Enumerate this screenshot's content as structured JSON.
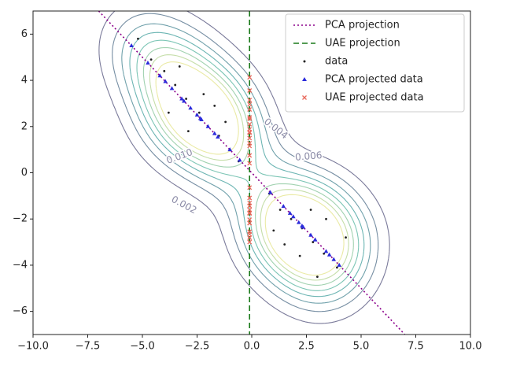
{
  "chart_data": {
    "type": "scatter",
    "xlim": [
      -10,
      10
    ],
    "ylim": [
      -7,
      7
    ],
    "xticks": [
      {
        "value": -10,
        "label": "−10.0"
      },
      {
        "value": -7.5,
        "label": "−7.5"
      },
      {
        "value": -5,
        "label": "−5.0"
      },
      {
        "value": -2.5,
        "label": "−2.5"
      },
      {
        "value": 0,
        "label": "0.0"
      },
      {
        "value": 2.5,
        "label": "2.5"
      },
      {
        "value": 5,
        "label": "5.0"
      },
      {
        "value": 7.5,
        "label": "7.5"
      },
      {
        "value": 10,
        "label": "10.0"
      }
    ],
    "yticks": [
      {
        "value": -6,
        "label": "−6"
      },
      {
        "value": -4,
        "label": "−4"
      },
      {
        "value": -2,
        "label": "−2"
      },
      0,
      2,
      4,
      6
    ],
    "contour_levels": [
      0.002,
      0.004,
      0.006,
      0.008,
      0.01,
      0.012,
      0.014,
      0.016
    ],
    "contour_labels": [
      {
        "value": 0.002,
        "label": "0.002"
      },
      {
        "value": 0.004,
        "label": "0.004"
      },
      {
        "value": 0.006,
        "label": "0.006"
      },
      {
        "value": 0.01,
        "label": "0.010"
      }
    ],
    "legend": "upper right",
    "series": [
      {
        "name": "PCA projection",
        "color": "#8b008b",
        "style": "dotted",
        "x": [
          -7,
          7
        ],
        "y": [
          7,
          -7
        ]
      },
      {
        "name": "UAE projection",
        "color": "#1a7a1a",
        "style": "dashed",
        "x": [
          -0.1,
          -0.1
        ],
        "y": [
          7,
          -7
        ]
      },
      {
        "name": "data",
        "color": "#222222",
        "style": "dot",
        "x": [
          -5.2,
          -4.6,
          -4.0,
          -3.5,
          -3.0,
          -2.4,
          -2.0,
          -1.5,
          -1.0,
          -0.6,
          -3.8,
          -2.9,
          -2.2,
          -1.7,
          -3.3,
          -1.2,
          0.8,
          1.3,
          1.8,
          2.3,
          2.8,
          3.3,
          3.9,
          1.5,
          2.2,
          3.4,
          2.7,
          1.0,
          3.0,
          4.3
        ],
        "y": [
          5.8,
          4.9,
          4.4,
          3.8,
          3.2,
          2.6,
          2.0,
          1.6,
          1.0,
          0.5,
          2.6,
          1.8,
          3.4,
          2.9,
          4.6,
          2.2,
          -0.9,
          -1.6,
          -2.0,
          -2.4,
          -3.0,
          -3.5,
          -4.1,
          -3.1,
          -3.6,
          -2.0,
          -1.6,
          -2.5,
          -4.5,
          -2.8
        ]
      },
      {
        "name": "PCA projected data",
        "color": "#2b2bdb",
        "style": "triangle",
        "x": [
          -5.5,
          -4.75,
          -4.2,
          -3.65,
          -3.1,
          -2.5,
          -2.0,
          -1.55,
          -1.0,
          -0.55,
          -3.2,
          -2.35,
          -2.8,
          -2.3,
          -3.95,
          -1.7,
          0.85,
          1.45,
          1.9,
          2.35,
          2.9,
          3.4,
          4.0,
          2.3,
          2.9,
          2.7,
          2.15,
          1.75,
          3.75,
          3.55
        ],
        "y": [
          5.5,
          4.75,
          4.2,
          3.65,
          3.1,
          2.5,
          2.0,
          1.55,
          1.0,
          0.55,
          3.2,
          2.35,
          2.8,
          2.3,
          3.95,
          1.7,
          -0.85,
          -1.45,
          -1.9,
          -2.35,
          -2.9,
          -3.4,
          -4.0,
          -2.3,
          -2.9,
          -2.7,
          -2.15,
          -1.75,
          -3.75,
          -3.55
        ]
      },
      {
        "name": "UAE projected data",
        "color": "#e8675a",
        "style": "cross",
        "x": [
          -0.1,
          -0.1,
          -0.1,
          -0.1,
          -0.1,
          -0.1,
          -0.1,
          -0.1,
          -0.1,
          -0.1,
          -0.1,
          -0.1,
          -0.1,
          -0.1,
          -0.1,
          -0.1,
          -0.1,
          -0.1,
          -0.1,
          -0.1,
          -0.1,
          -0.1,
          -0.1,
          -0.1,
          -0.1,
          -0.1,
          -0.1,
          -0.1,
          -0.1,
          -0.1
        ],
        "y": [
          4.13,
          3.56,
          3.15,
          2.74,
          2.33,
          1.88,
          1.5,
          1.16,
          0.75,
          0.41,
          2.4,
          1.76,
          2.1,
          1.73,
          2.96,
          1.28,
          -0.64,
          -1.09,
          -1.43,
          -1.76,
          -2.18,
          -2.55,
          -3.0,
          -1.73,
          -2.18,
          -2.03,
          -1.61,
          -1.31,
          -2.81,
          -2.66
        ]
      }
    ]
  }
}
